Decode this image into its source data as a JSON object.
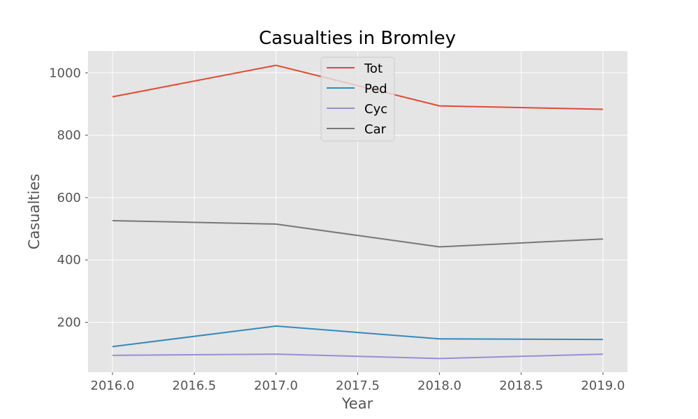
{
  "chart_data": {
    "type": "line",
    "title": "Casualties in Bromley",
    "xlabel": "Year",
    "ylabel": "Casualties",
    "x": [
      2016,
      2017,
      2018,
      2019
    ],
    "xticks": [
      "2016.0",
      "2016.5",
      "2017.0",
      "2017.5",
      "2018.0",
      "2018.5",
      "2019.0"
    ],
    "yticks": [
      "200",
      "400",
      "600",
      "800",
      "1000"
    ],
    "xlim": [
      2015.85,
      2019.15
    ],
    "ylim": [
      40,
      1070
    ],
    "grid": true,
    "legend_position": "top-center",
    "series": [
      {
        "name": "Tot",
        "color": "#e24a33",
        "values": [
          923,
          1024,
          894,
          883
        ]
      },
      {
        "name": "Ped",
        "color": "#348abd",
        "values": [
          122,
          188,
          147,
          145
        ]
      },
      {
        "name": "Cyc",
        "color": "#988ed5",
        "values": [
          94,
          98,
          84,
          98
        ]
      },
      {
        "name": "Car",
        "color": "#777777",
        "values": [
          526,
          515,
          442,
          467
        ]
      }
    ],
    "colors": {
      "plot_background": "#e5e5e5",
      "grid": "#ffffff",
      "legend_background": "#e5e5e5"
    }
  }
}
